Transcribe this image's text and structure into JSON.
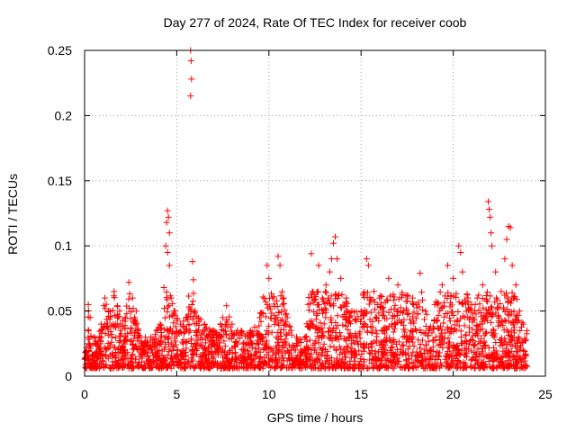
{
  "chart_data": {
    "type": "scatter",
    "title": "Day 277 of 2024, Rate Of TEC Index for receiver coob",
    "xlabel": "GPS time / hours",
    "ylabel": "ROTI / TECUs",
    "xlim": [
      0,
      25
    ],
    "ylim": [
      0,
      0.25
    ],
    "xticks": [
      0,
      5,
      10,
      15,
      20,
      25
    ],
    "xtick_labels": [
      "0",
      "5",
      "10",
      "15",
      "20",
      "25"
    ],
    "yticks": [
      0,
      0.05,
      0.1,
      0.15,
      0.2,
      0.25
    ],
    "ytick_labels": [
      "0",
      "0.05",
      "0.1",
      "0.15",
      "0.2",
      "0.25"
    ],
    "grid": true,
    "marker": "+",
    "series_color": "#ff0000",
    "data_extent_hours": [
      0,
      24
    ],
    "series": [
      {
        "name": "ROTI",
        "points": [
          [
            0.1,
            0.022
          ],
          [
            0.2,
            0.055
          ],
          [
            0.3,
            0.045
          ],
          [
            0.5,
            0.03
          ],
          [
            0.7,
            0.025
          ],
          [
            0.9,
            0.04
          ],
          [
            1.1,
            0.06
          ],
          [
            1.3,
            0.05
          ],
          [
            1.6,
            0.065
          ],
          [
            1.9,
            0.05
          ],
          [
            2.2,
            0.045
          ],
          [
            2.4,
            0.072
          ],
          [
            2.6,
            0.06
          ],
          [
            2.8,
            0.05
          ],
          [
            3.0,
            0.03
          ],
          [
            3.3,
            0.025
          ],
          [
            3.6,
            0.03
          ],
          [
            3.9,
            0.035
          ],
          [
            4.1,
            0.04
          ],
          [
            4.3,
            0.068
          ],
          [
            4.4,
            0.1
          ],
          [
            4.45,
            0.118
          ],
          [
            4.5,
            0.127
          ],
          [
            4.55,
            0.122
          ],
          [
            4.6,
            0.11
          ],
          [
            4.5,
            0.095
          ],
          [
            4.6,
            0.085
          ],
          [
            4.7,
            0.06
          ],
          [
            4.9,
            0.05
          ],
          [
            5.2,
            0.04
          ],
          [
            5.5,
            0.045
          ],
          [
            5.75,
            0.25
          ],
          [
            5.78,
            0.242
          ],
          [
            5.8,
            0.228
          ],
          [
            5.75,
            0.215
          ],
          [
            5.85,
            0.088
          ],
          [
            5.9,
            0.074
          ],
          [
            6.0,
            0.05
          ],
          [
            6.5,
            0.04
          ],
          [
            7.0,
            0.035
          ],
          [
            7.5,
            0.045
          ],
          [
            7.7,
            0.054
          ],
          [
            8.0,
            0.04
          ],
          [
            8.5,
            0.035
          ],
          [
            9.0,
            0.035
          ],
          [
            9.5,
            0.045
          ],
          [
            9.9,
            0.085
          ],
          [
            10.0,
            0.075
          ],
          [
            10.2,
            0.06
          ],
          [
            10.5,
            0.092
          ],
          [
            10.6,
            0.085
          ],
          [
            10.8,
            0.06
          ],
          [
            11.0,
            0.045
          ],
          [
            11.5,
            0.03
          ],
          [
            12.0,
            0.03
          ],
          [
            12.3,
            0.094
          ],
          [
            12.7,
            0.085
          ],
          [
            12.9,
            0.06
          ],
          [
            13.1,
            0.07
          ],
          [
            13.3,
            0.08
          ],
          [
            13.4,
            0.09
          ],
          [
            13.5,
            0.102
          ],
          [
            13.6,
            0.107
          ],
          [
            13.7,
            0.09
          ],
          [
            13.9,
            0.075
          ],
          [
            14.2,
            0.06
          ],
          [
            14.5,
            0.05
          ],
          [
            15.0,
            0.05
          ],
          [
            15.3,
            0.09
          ],
          [
            15.4,
            0.085
          ],
          [
            15.7,
            0.065
          ],
          [
            16.0,
            0.06
          ],
          [
            16.5,
            0.075
          ],
          [
            17.0,
            0.07
          ],
          [
            17.5,
            0.062
          ],
          [
            17.8,
            0.06
          ],
          [
            18.0,
            0.055
          ],
          [
            18.2,
            0.079
          ],
          [
            18.5,
            0.05
          ],
          [
            19.0,
            0.055
          ],
          [
            19.4,
            0.07
          ],
          [
            19.7,
            0.085
          ],
          [
            20.0,
            0.075
          ],
          [
            20.3,
            0.1
          ],
          [
            20.4,
            0.095
          ],
          [
            20.5,
            0.08
          ],
          [
            20.8,
            0.06
          ],
          [
            21.0,
            0.055
          ],
          [
            21.3,
            0.06
          ],
          [
            21.6,
            0.07
          ],
          [
            21.9,
            0.134
          ],
          [
            21.95,
            0.128
          ],
          [
            22.0,
            0.122
          ],
          [
            22.05,
            0.11
          ],
          [
            22.1,
            0.1
          ],
          [
            22.3,
            0.08
          ],
          [
            22.6,
            0.065
          ],
          [
            22.8,
            0.09
          ],
          [
            22.9,
            0.105
          ],
          [
            23.0,
            0.115
          ],
          [
            23.1,
            0.114
          ],
          [
            23.2,
            0.085
          ],
          [
            23.4,
            0.07
          ],
          [
            23.6,
            0.05
          ],
          [
            23.8,
            0.04
          ],
          [
            24.0,
            0.035
          ]
        ]
      }
    ]
  }
}
